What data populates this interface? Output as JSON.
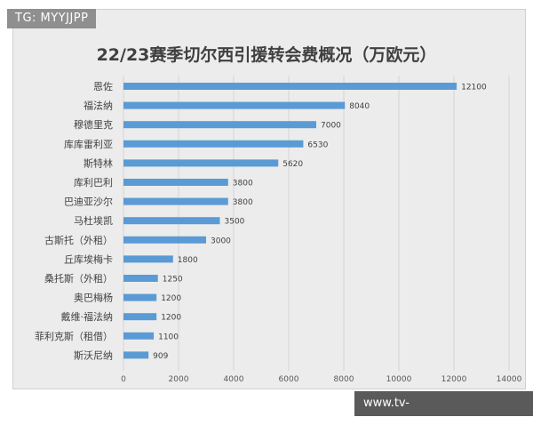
{
  "watermark_top": "TG: MYYJJPP",
  "watermark_bottom": "www.tv-xingkonggames.com",
  "chart_data": {
    "type": "bar",
    "orientation": "horizontal",
    "title": "22/23赛季切尔西引援转会费概况（万欧元）",
    "categories": [
      "恩佐",
      "福法纳",
      "穆德里克",
      "库库雷利亚",
      "斯特林",
      "库利巴利",
      "巴迪亚沙尔",
      "马杜埃凯",
      "古斯托（外租）",
      "丘库埃梅卡",
      "桑托斯（外租）",
      "奥巴梅杨",
      "戴维·福法纳",
      "菲利克斯（租借）",
      "斯沃尼纳"
    ],
    "values": [
      12100,
      8040,
      7000,
      6530,
      5620,
      3800,
      3800,
      3500,
      3000,
      1800,
      1250,
      1200,
      1200,
      1100,
      909
    ],
    "data_labels": [
      "12100",
      "8040",
      "7000",
      "6530",
      "5620",
      "3800",
      "3800",
      "3500",
      "3000",
      "1800",
      "1250",
      "1200",
      "1200",
      "1100",
      "909"
    ],
    "xlim": [
      0,
      14000
    ],
    "xticks": [
      "0",
      "2000",
      "4000",
      "6000",
      "8000",
      "10000",
      "12000",
      "14000"
    ],
    "grid": true,
    "bar_color": "#5b9bd5"
  }
}
